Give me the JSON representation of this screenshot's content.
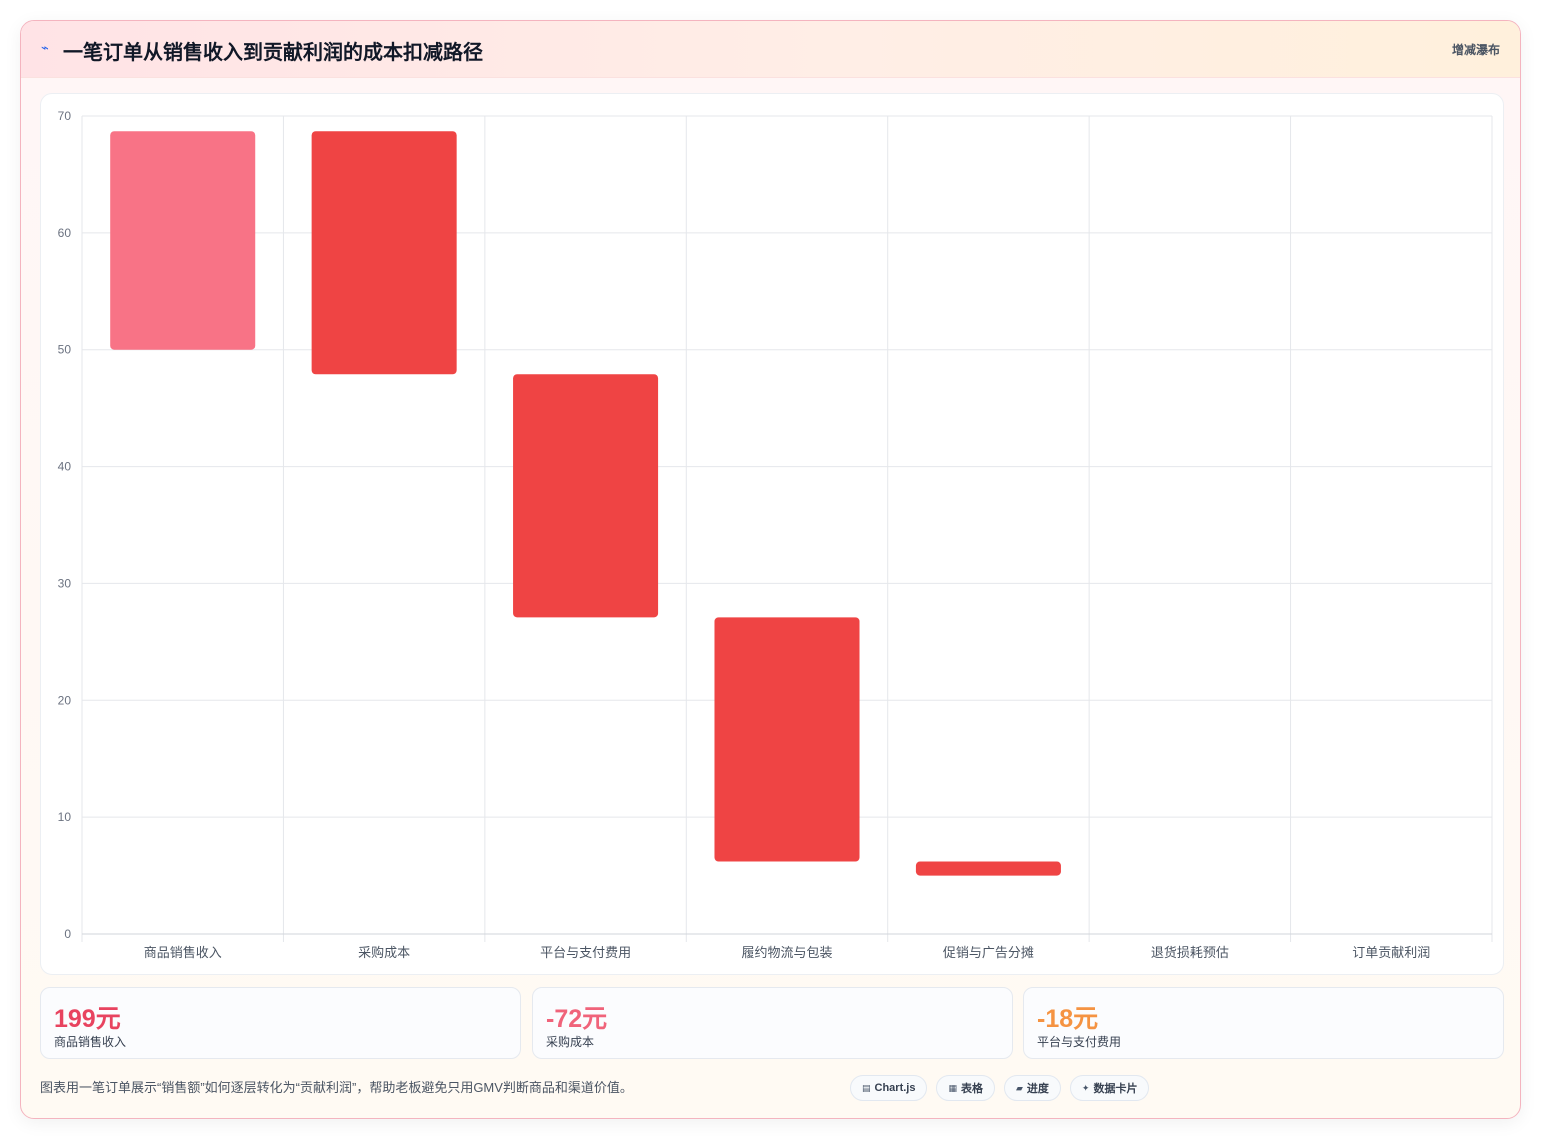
{
  "header": {
    "icon": "⌁",
    "title": "一笔订单从销售收入到贡献利润的成本扣减路径",
    "tag": "增减瀑布"
  },
  "colors": {
    "revenue": "#f87386",
    "deduction": "#ef4444",
    "grid": "#e5e7eb",
    "axis_text": "#6b7280",
    "kpi_revenue": "#e8435f",
    "kpi_cost": "#f0637a",
    "kpi_fee": "#f59342"
  },
  "chart_data": {
    "type": "bar",
    "subtype": "floating-waterfall",
    "categories": [
      "商品销售收入",
      "采购成本",
      "平台与支付费用",
      "履约物流与包装",
      "促销与广告分摊",
      "退货损耗预估",
      "订单贡献利润"
    ],
    "ranges": [
      [
        50,
        68.7
      ],
      [
        47.9,
        68.7
      ],
      [
        27.1,
        47.9
      ],
      [
        6.2,
        27.1
      ],
      [
        5,
        6.2
      ],
      null,
      null
    ],
    "bar_colors": [
      "revenue",
      "deduction",
      "deduction",
      "deduction",
      "deduction",
      "deduction",
      "deduction"
    ],
    "ylim": [
      0,
      70
    ],
    "yticks": [
      0,
      10,
      20,
      30,
      40,
      50,
      60,
      70
    ],
    "grid": true,
    "legend": "none",
    "xlabel": "",
    "ylabel": ""
  },
  "kpis": [
    {
      "value": "199元",
      "label": "商品销售收入",
      "color_key": "kpi_revenue"
    },
    {
      "value": "-72元",
      "label": "采购成本",
      "color_key": "kpi_cost"
    },
    {
      "value": "-18元",
      "label": "平台与支付费用",
      "color_key": "kpi_fee"
    }
  ],
  "footnote": "图表用一笔订单展示“销售额”如何逐层转化为“贡献利润”，帮助老板避免只用GMV判断商品和渠道价值。",
  "pills": [
    {
      "icon": "▤",
      "label": "Chart.js",
      "icon_name": "chart-icon"
    },
    {
      "icon": "▦",
      "label": "表格",
      "icon_name": "table-icon"
    },
    {
      "icon": "▰",
      "label": "进度",
      "icon_name": "progress-icon"
    },
    {
      "icon": "✦",
      "label": "数据卡片",
      "icon_name": "sparkle-icon"
    }
  ]
}
